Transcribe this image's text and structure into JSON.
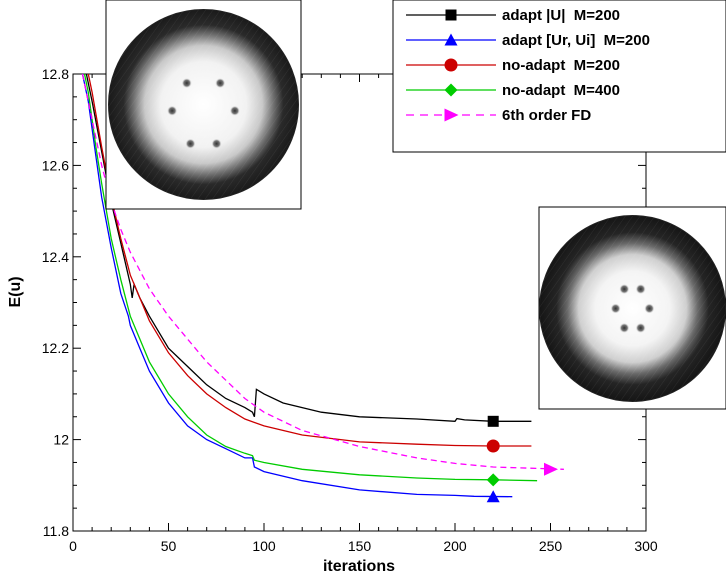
{
  "chart_data": {
    "type": "line",
    "xlabel": "iterations",
    "ylabel": "E(u)",
    "xlim": [
      0,
      300
    ],
    "ylim": [
      11.8,
      12.8
    ],
    "xticks": [
      "0",
      "50",
      "100",
      "150",
      "200",
      "250",
      "300"
    ],
    "yticks": [
      "11.8",
      "12",
      "12.2",
      "12.4",
      "12.6",
      "12.8"
    ],
    "legend_position": "top-right",
    "series": [
      {
        "name": "adapt |U|  M=200",
        "color": "#000000",
        "marker": "square",
        "dash": false,
        "points": [
          [
            7,
            12.8
          ],
          [
            10,
            12.74
          ],
          [
            15,
            12.63
          ],
          [
            20,
            12.52
          ],
          [
            25,
            12.43
          ],
          [
            30,
            12.34
          ],
          [
            31,
            12.31
          ],
          [
            32,
            12.34
          ],
          [
            35,
            12.31
          ],
          [
            40,
            12.27
          ],
          [
            50,
            12.2
          ],
          [
            60,
            12.16
          ],
          [
            70,
            12.12
          ],
          [
            80,
            12.09
          ],
          [
            90,
            12.07
          ],
          [
            94,
            12.06
          ],
          [
            95,
            12.05
          ],
          [
            96,
            12.11
          ],
          [
            100,
            12.1
          ],
          [
            110,
            12.08
          ],
          [
            130,
            12.06
          ],
          [
            150,
            12.05
          ],
          [
            180,
            12.045
          ],
          [
            200,
            12.04
          ],
          [
            201,
            12.046
          ],
          [
            205,
            12.043
          ],
          [
            220,
            12.04
          ],
          [
            240,
            12.04
          ]
        ],
        "marker_point": [
          220,
          12.04
        ]
      },
      {
        "name": "adapt [Ur, Ui]  M=200",
        "color": "#0000ff",
        "marker": "triangle",
        "dash": false,
        "points": [
          [
            5,
            12.8
          ],
          [
            8,
            12.74
          ],
          [
            12,
            12.62
          ],
          [
            15,
            12.53
          ],
          [
            20,
            12.42
          ],
          [
            25,
            12.32
          ],
          [
            29,
            12.27
          ],
          [
            30,
            12.25
          ],
          [
            35,
            12.2
          ],
          [
            40,
            12.15
          ],
          [
            50,
            12.08
          ],
          [
            60,
            12.03
          ],
          [
            70,
            12.0
          ],
          [
            80,
            11.98
          ],
          [
            90,
            11.96
          ],
          [
            94,
            11.96
          ],
          [
            95,
            11.94
          ],
          [
            100,
            11.93
          ],
          [
            120,
            11.91
          ],
          [
            150,
            11.89
          ],
          [
            180,
            11.88
          ],
          [
            200,
            11.878
          ],
          [
            210,
            11.876
          ],
          [
            230,
            11.875
          ]
        ],
        "marker_point": [
          220,
          11.875
        ]
      },
      {
        "name": "no-adapt  M=200",
        "color": "#cc0000",
        "marker": "circle",
        "dash": false,
        "points": [
          [
            8,
            12.8
          ],
          [
            10,
            12.76
          ],
          [
            15,
            12.64
          ],
          [
            20,
            12.53
          ],
          [
            25,
            12.44
          ],
          [
            30,
            12.36
          ],
          [
            40,
            12.26
          ],
          [
            50,
            12.19
          ],
          [
            60,
            12.14
          ],
          [
            70,
            12.1
          ],
          [
            80,
            12.07
          ],
          [
            90,
            12.045
          ],
          [
            100,
            12.03
          ],
          [
            120,
            12.01
          ],
          [
            150,
            11.995
          ],
          [
            180,
            11.99
          ],
          [
            200,
            11.987
          ],
          [
            220,
            11.986
          ],
          [
            240,
            11.986
          ]
        ],
        "marker_point": [
          220,
          11.986
        ]
      },
      {
        "name": "no-adapt  M=400",
        "color": "#00cc00",
        "marker": "diamond",
        "dash": false,
        "points": [
          [
            6,
            12.8
          ],
          [
            8,
            12.76
          ],
          [
            12,
            12.64
          ],
          [
            15,
            12.56
          ],
          [
            20,
            12.44
          ],
          [
            25,
            12.35
          ],
          [
            30,
            12.27
          ],
          [
            40,
            12.17
          ],
          [
            50,
            12.1
          ],
          [
            60,
            12.05
          ],
          [
            70,
            12.01
          ],
          [
            80,
            11.985
          ],
          [
            90,
            11.97
          ],
          [
            94,
            11.965
          ],
          [
            95,
            11.955
          ],
          [
            100,
            11.95
          ],
          [
            120,
            11.935
          ],
          [
            150,
            11.923
          ],
          [
            180,
            11.916
          ],
          [
            200,
            11.913
          ],
          [
            220,
            11.912
          ],
          [
            243,
            11.91
          ]
        ],
        "marker_point": [
          220,
          11.912
        ]
      },
      {
        "name": "6th order FD",
        "color": "#ff00ff",
        "marker": "triangle-right",
        "dash": true,
        "points": [
          [
            5,
            12.8
          ],
          [
            10,
            12.7
          ],
          [
            15,
            12.6
          ],
          [
            20,
            12.52
          ],
          [
            25,
            12.46
          ],
          [
            30,
            12.41
          ],
          [
            40,
            12.33
          ],
          [
            50,
            12.27
          ],
          [
            60,
            12.22
          ],
          [
            70,
            12.17
          ],
          [
            80,
            12.13
          ],
          [
            90,
            12.09
          ],
          [
            100,
            12.06
          ],
          [
            120,
            12.02
          ],
          [
            150,
            11.985
          ],
          [
            180,
            11.96
          ],
          [
            200,
            11.948
          ],
          [
            220,
            11.94
          ],
          [
            250,
            11.936
          ],
          [
            257,
            11.935
          ]
        ],
        "marker_point": [
          250,
          11.935
        ]
      }
    ],
    "insets": [
      {
        "name": "inset-mesh-top",
        "dots": [
          [
            -0.32,
            -0.41
          ],
          [
            0.32,
            -0.41
          ],
          [
            -0.6,
            0.12
          ],
          [
            0.6,
            0.12
          ],
          [
            -0.25,
            0.75
          ],
          [
            0.25,
            0.75
          ]
        ]
      },
      {
        "name": "inset-mesh-right",
        "dots": [
          [
            -0.16,
            -0.38
          ],
          [
            0.16,
            -0.38
          ],
          [
            -0.33,
            0.0
          ],
          [
            0.33,
            0.0
          ],
          [
            -0.16,
            0.38
          ],
          [
            0.16,
            0.38
          ]
        ]
      }
    ]
  }
}
